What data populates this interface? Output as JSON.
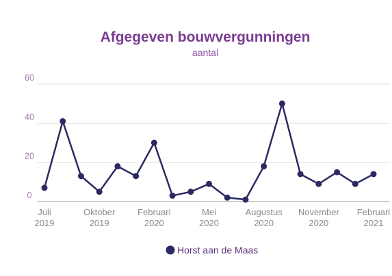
{
  "chart_data": {
    "type": "line",
    "title": "Afgegeven bouwvergunningen",
    "subtitle": "aantal",
    "categories": [
      "Juli 2019",
      null,
      null,
      "Oktober 2019",
      null,
      null,
      "Februari 2020",
      null,
      null,
      "Mei 2020",
      null,
      null,
      "Augustus 2020",
      null,
      null,
      "November 2020",
      null,
      null,
      "Februari 2021"
    ],
    "series": [
      {
        "name": "Horst aan de Maas",
        "color": "#2b2a63",
        "values": [
          7,
          41,
          13,
          5,
          18,
          13,
          30,
          3,
          5,
          9,
          2,
          1,
          18,
          50,
          14,
          9,
          15,
          9,
          14
        ]
      }
    ],
    "ylim": [
      0,
      60
    ],
    "yticks": [
      0,
      20,
      40,
      60
    ],
    "grid": true,
    "legend": "bottom"
  }
}
